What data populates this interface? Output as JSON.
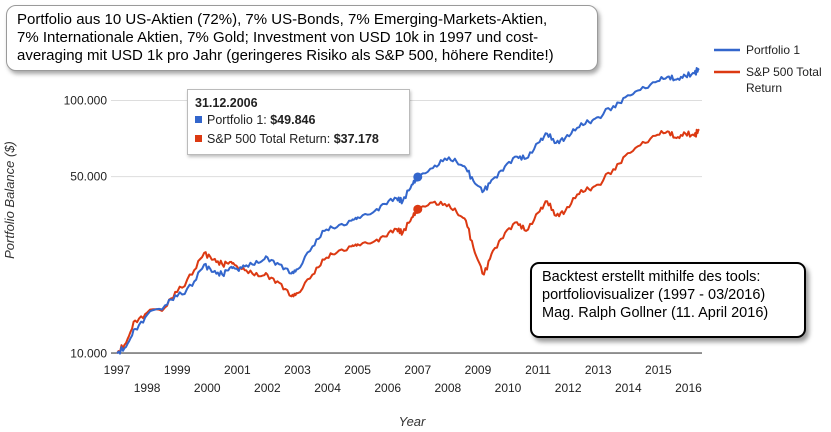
{
  "chart_data": {
    "type": "line",
    "title_lines": [
      "Portfolio aus 10 US-Aktien (72%), 7% US-Bonds, 7% Emerging-Markets-Aktien,",
      "7% Internationale Aktien, 7% Gold; Investment von USD 10k in 1997 und cost-",
      "averaging mit USD 1k pro Jahr (geringeres Risiko als S&P 500, höhere Rendite!)"
    ],
    "xlabel": "Year",
    "ylabel": "Portfolio Balance ($)",
    "y_scale": "log",
    "ylim": [
      9000,
      190000
    ],
    "xlim": [
      1996.8,
      2016.45
    ],
    "y_ticks": [
      {
        "value": 10000,
        "label": "10.000"
      },
      {
        "value": 50000,
        "label": "50.000"
      },
      {
        "value": 100000,
        "label": "100.000"
      }
    ],
    "x_ticks_upper": [
      1997,
      1999,
      2001,
      2003,
      2005,
      2007,
      2009,
      2011,
      2013,
      2015
    ],
    "x_ticks_lower": [
      1998,
      2000,
      2002,
      2004,
      2006,
      2008,
      2010,
      2012,
      2014,
      2016
    ],
    "grid": "horizontal",
    "legend_position": "top-right",
    "series": [
      {
        "name": "Portfolio 1",
        "color": "#3366cc",
        "points": [
          [
            1997.0,
            10000
          ],
          [
            1997.3,
            10600
          ],
          [
            1997.6,
            12500
          ],
          [
            1998.0,
            14200
          ],
          [
            1998.6,
            15500
          ],
          [
            1999.0,
            16800
          ],
          [
            1999.5,
            18500
          ],
          [
            1999.9,
            22500
          ],
          [
            2000.2,
            21000
          ],
          [
            2000.5,
            20500
          ],
          [
            2000.8,
            22000
          ],
          [
            2001.0,
            21500
          ],
          [
            2001.3,
            22300
          ],
          [
            2001.7,
            22800
          ],
          [
            2002.0,
            24000
          ],
          [
            2002.4,
            22500
          ],
          [
            2002.8,
            20700
          ],
          [
            2003.0,
            21500
          ],
          [
            2003.5,
            26500
          ],
          [
            2003.9,
            30500
          ],
          [
            2004.3,
            31500
          ],
          [
            2004.8,
            33500
          ],
          [
            2005.0,
            34500
          ],
          [
            2005.5,
            36000
          ],
          [
            2005.9,
            39000
          ],
          [
            2006.3,
            41000
          ],
          [
            2006.5,
            40000
          ],
          [
            2006.8,
            46500
          ],
          [
            2007.0,
            49846
          ],
          [
            2007.5,
            54000
          ],
          [
            2007.9,
            59000
          ],
          [
            2008.3,
            57000
          ],
          [
            2008.6,
            54000
          ],
          [
            2008.9,
            47000
          ],
          [
            2009.2,
            44000
          ],
          [
            2009.5,
            49000
          ],
          [
            2009.9,
            55000
          ],
          [
            2010.3,
            60000
          ],
          [
            2010.6,
            59000
          ],
          [
            2011.0,
            68000
          ],
          [
            2011.3,
            74000
          ],
          [
            2011.6,
            68000
          ],
          [
            2011.9,
            71000
          ],
          [
            2012.3,
            78000
          ],
          [
            2012.7,
            82000
          ],
          [
            2013.0,
            86000
          ],
          [
            2013.5,
            95000
          ],
          [
            2013.9,
            103000
          ],
          [
            2014.4,
            110000
          ],
          [
            2014.9,
            118000
          ],
          [
            2015.3,
            124000
          ],
          [
            2015.6,
            121000
          ],
          [
            2015.9,
            125000
          ],
          [
            2016.2,
            128000
          ],
          [
            2016.35,
            134000
          ]
        ]
      },
      {
        "name": "S&P 500 Total Return",
        "color": "#dc3912",
        "points": [
          [
            1997.0,
            10000
          ],
          [
            1997.3,
            11000
          ],
          [
            1997.6,
            13500
          ],
          [
            1998.0,
            14500
          ],
          [
            1998.6,
            15200
          ],
          [
            1999.0,
            17500
          ],
          [
            1999.5,
            20500
          ],
          [
            1999.9,
            25000
          ],
          [
            2000.2,
            23500
          ],
          [
            2000.5,
            22500
          ],
          [
            2000.8,
            23000
          ],
          [
            2001.0,
            22000
          ],
          [
            2001.3,
            21300
          ],
          [
            2001.7,
            20200
          ],
          [
            2002.0,
            20500
          ],
          [
            2002.4,
            19000
          ],
          [
            2002.8,
            16800
          ],
          [
            2003.0,
            17300
          ],
          [
            2003.5,
            20500
          ],
          [
            2003.9,
            23500
          ],
          [
            2004.3,
            25000
          ],
          [
            2004.8,
            26500
          ],
          [
            2005.0,
            27000
          ],
          [
            2005.5,
            27500
          ],
          [
            2005.9,
            29000
          ],
          [
            2006.3,
            31000
          ],
          [
            2006.5,
            30000
          ],
          [
            2006.8,
            34500
          ],
          [
            2007.0,
            37178
          ],
          [
            2007.5,
            39500
          ],
          [
            2007.9,
            39000
          ],
          [
            2008.3,
            36000
          ],
          [
            2008.6,
            33500
          ],
          [
            2008.9,
            25000
          ],
          [
            2009.2,
            20500
          ],
          [
            2009.5,
            25500
          ],
          [
            2009.9,
            30000
          ],
          [
            2010.3,
            33000
          ],
          [
            2010.6,
            30500
          ],
          [
            2011.0,
            36000
          ],
          [
            2011.3,
            40000
          ],
          [
            2011.6,
            35000
          ],
          [
            2011.9,
            36500
          ],
          [
            2012.3,
            42500
          ],
          [
            2012.7,
            44500
          ],
          [
            2013.0,
            46500
          ],
          [
            2013.5,
            53500
          ],
          [
            2013.9,
            60500
          ],
          [
            2014.4,
            66500
          ],
          [
            2014.9,
            72500
          ],
          [
            2015.3,
            75500
          ],
          [
            2015.6,
            71000
          ],
          [
            2015.9,
            74000
          ],
          [
            2016.2,
            72500
          ],
          [
            2016.35,
            77000
          ]
        ]
      }
    ],
    "tooltip": {
      "date": "31.12.2006",
      "x": 2007.0,
      "rows": [
        {
          "label": "Portfolio 1: ",
          "value": "$49.846",
          "color": "#3366cc"
        },
        {
          "label": "S&P 500 Total Return: ",
          "value": "$37.178",
          "color": "#dc3912"
        }
      ]
    },
    "legend": {
      "items": [
        {
          "lines": [
            "Portfolio 1"
          ],
          "color": "#3366cc"
        },
        {
          "lines": [
            "S&P 500 Total",
            "Return"
          ],
          "color": "#dc3912"
        }
      ]
    },
    "note_lines": [
      "Backtest erstellt mithilfe des tools:",
      "portfoliovisualizer (1997 - 03/2016)",
      "Mag. Ralph Gollner (11. April 2016)"
    ]
  }
}
